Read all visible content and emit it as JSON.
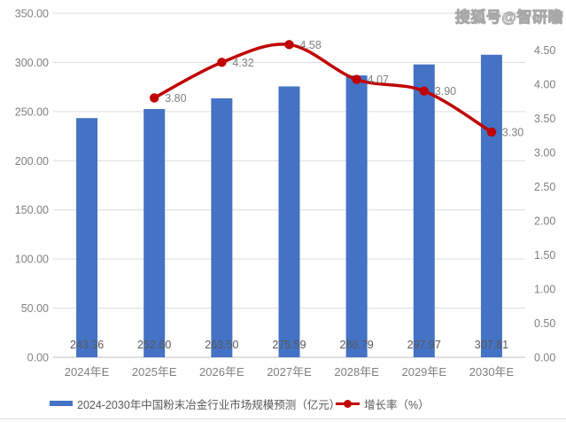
{
  "watermark": "搜狐号@智研瞻",
  "colors": {
    "bar": "#4472C4",
    "line": "#C00000",
    "grid": "#DCDCDC",
    "axis_line": "#BFBFBF",
    "tick_text": "#808080",
    "value_label_text": "#595959"
  },
  "chart_data": {
    "type": "combo-bar-line",
    "categories": [
      "2024年E",
      "2025年E",
      "2026年E",
      "2027年E",
      "2028年E",
      "2029年E",
      "2030年E"
    ],
    "series": [
      {
        "name": "2024-2030年中国粉末冶金行业市场规模预测（亿元）",
        "type": "bar",
        "axis": "left",
        "color": "#4472C4",
        "values": [
          243.36,
          252.6,
          263.5,
          275.59,
          286.79,
          297.97,
          307.81
        ],
        "labels": [
          "243.36",
          "252.60",
          "263.50",
          "275.59",
          "286.79",
          "297.97",
          "307.81"
        ]
      },
      {
        "name": "增长率（%）",
        "type": "line",
        "axis": "right",
        "color": "#C00000",
        "values": [
          null,
          3.8,
          4.32,
          4.58,
          4.07,
          3.9,
          3.3
        ],
        "labels": [
          "",
          "3.80",
          "4.32",
          "4.58",
          "4.07",
          "3.90",
          "3.30"
        ]
      }
    ],
    "left_axis": {
      "min": 0,
      "max": 350,
      "step": 50,
      "ticks": [
        "0.00",
        "50.00",
        "100.00",
        "150.00",
        "200.00",
        "250.00",
        "300.00",
        "350.00"
      ]
    },
    "right_axis": {
      "min": 0,
      "max": 4.5,
      "step": 0.5,
      "ticks": [
        "0.00",
        "0.50",
        "1.00",
        "1.50",
        "2.00",
        "2.50",
        "3.00",
        "3.50",
        "4.00",
        "4.50"
      ]
    },
    "grid": true,
    "legend_position": "bottom"
  }
}
